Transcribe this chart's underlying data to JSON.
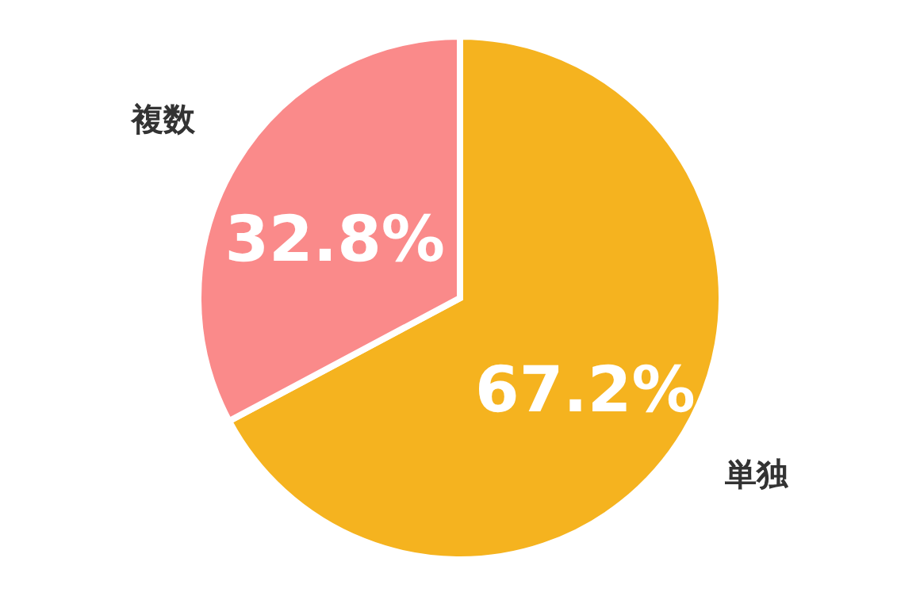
{
  "chart_data": {
    "type": "pie",
    "categories": [
      "単独",
      "複数"
    ],
    "values": [
      67.2,
      32.8
    ],
    "colors": [
      "#f5b31f",
      "#fa8a8a"
    ],
    "value_labels": [
      "67.2%",
      "32.8%"
    ]
  }
}
